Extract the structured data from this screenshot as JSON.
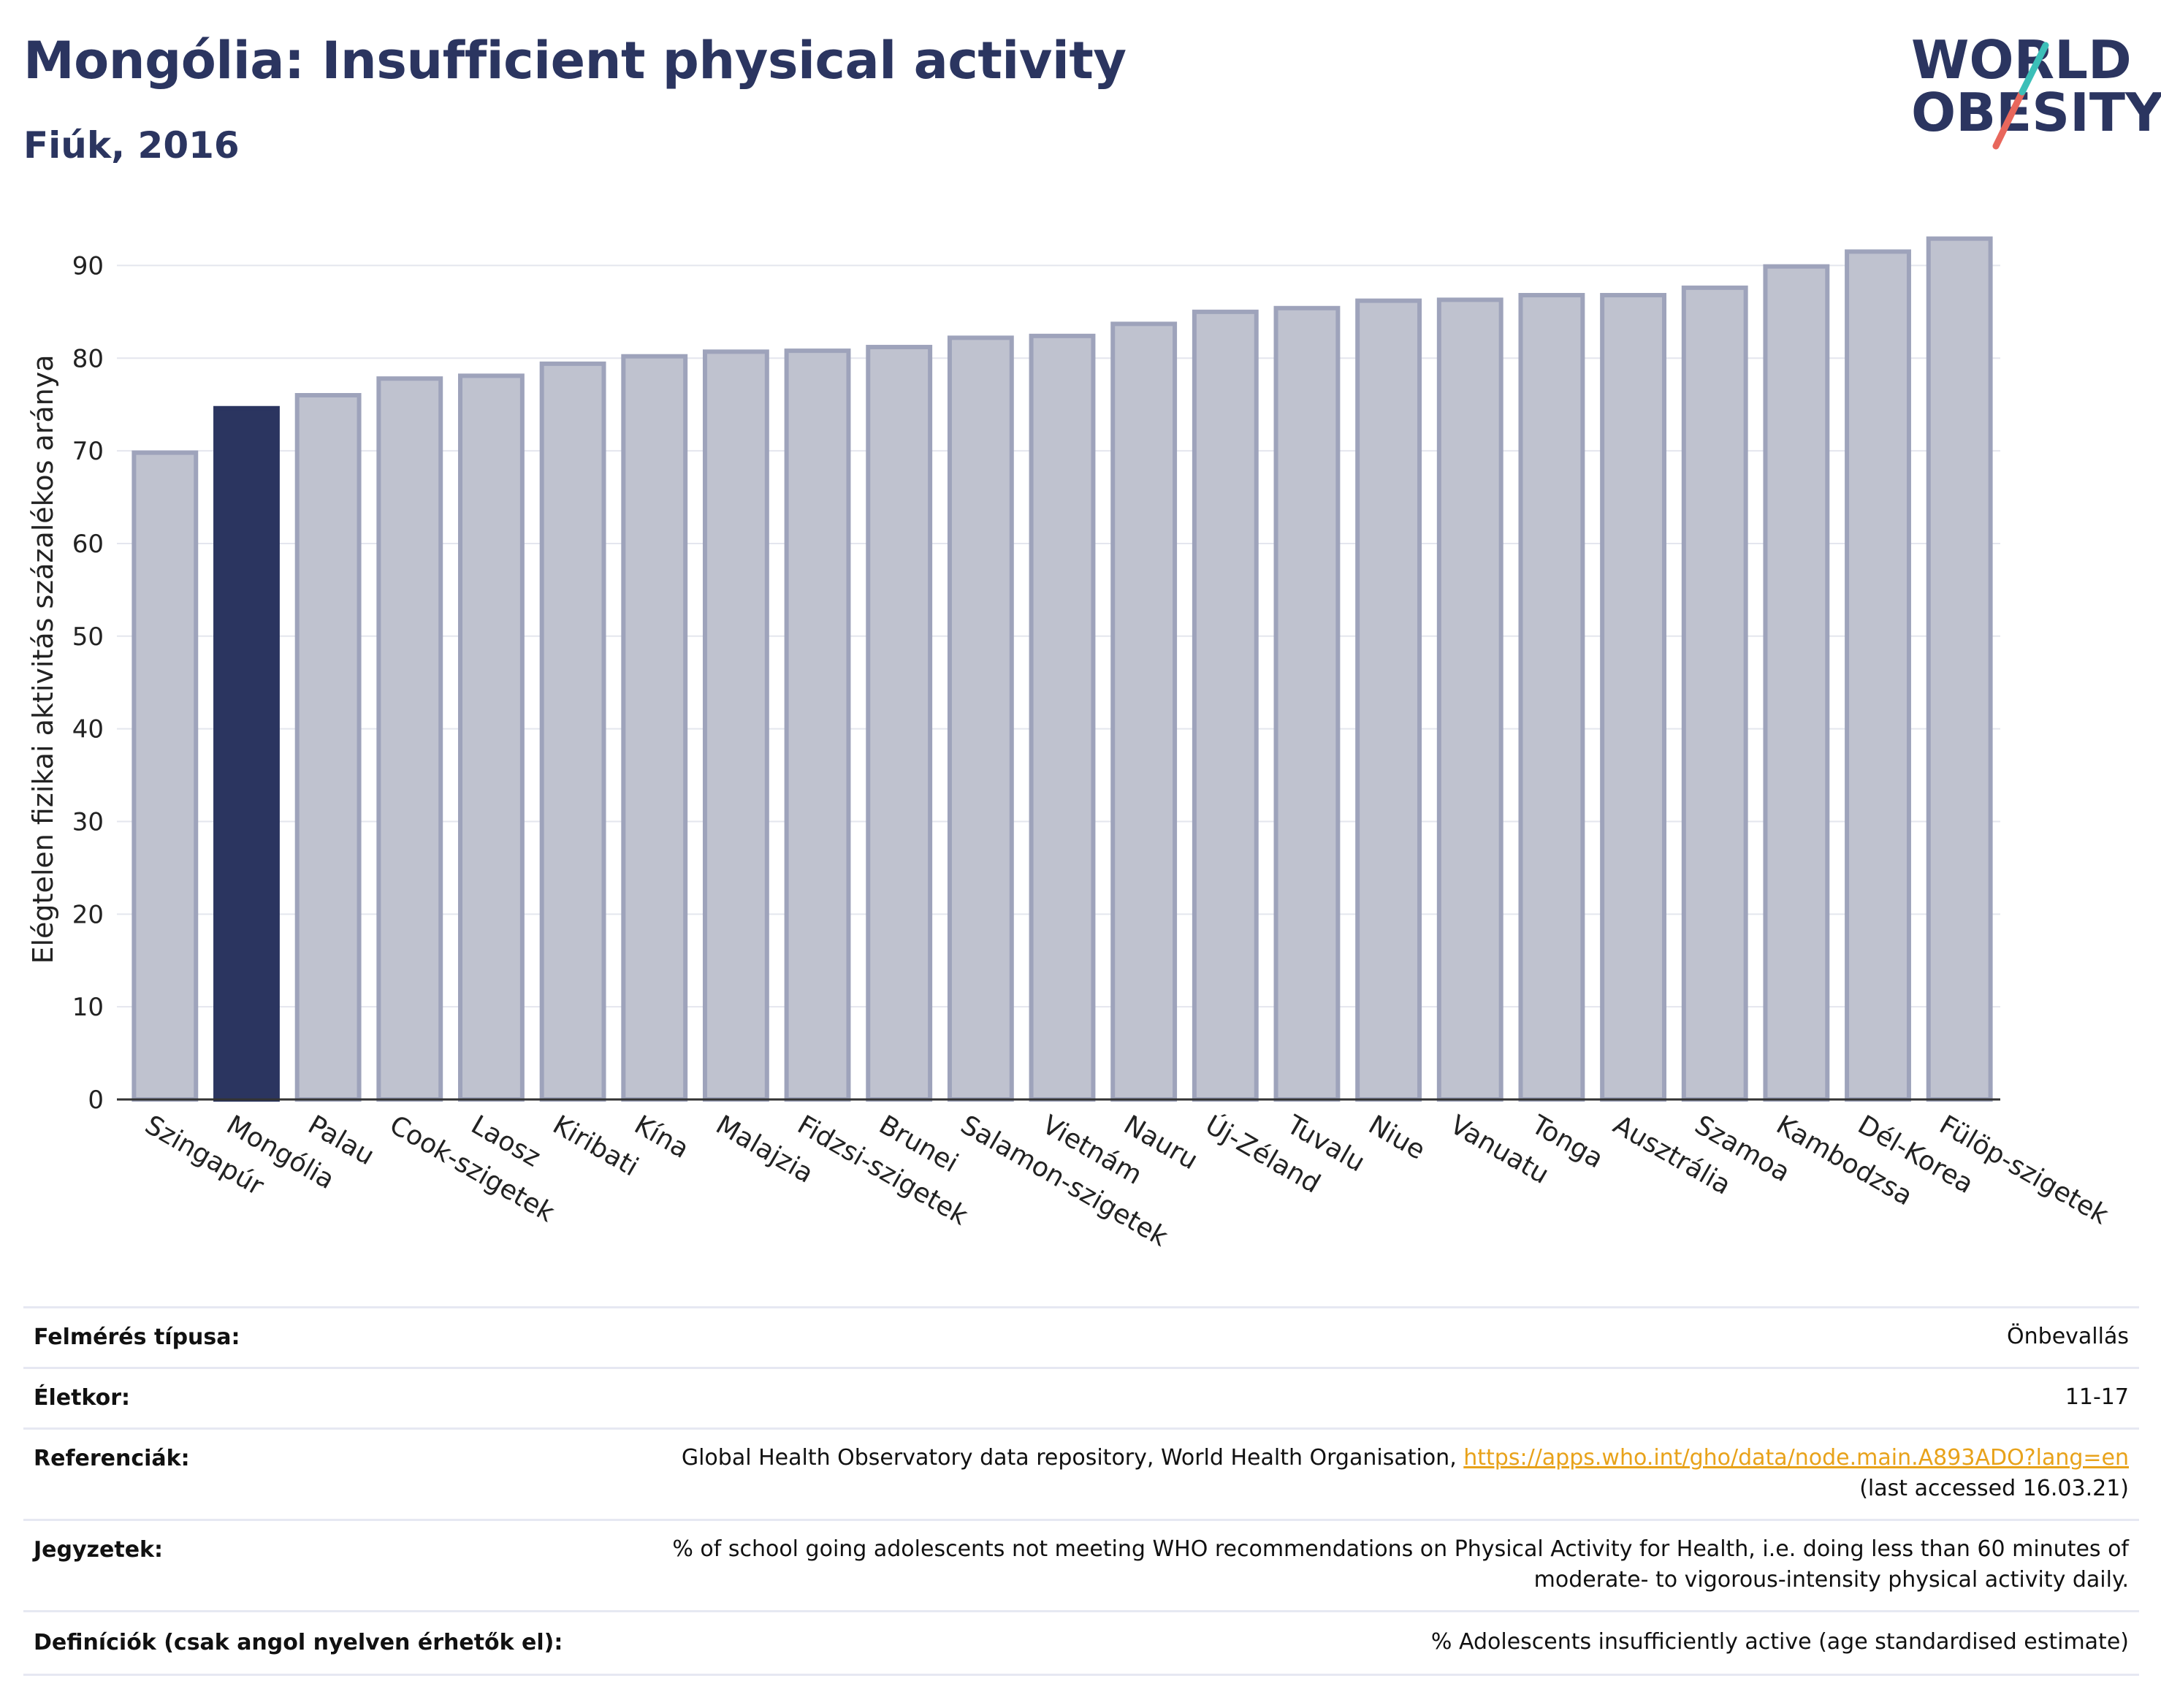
{
  "header": {
    "title": "Mongólia: Insufficient physical activity",
    "subtitle": "Fiúk, 2016"
  },
  "logo": {
    "line1": "WORLD",
    "line2": "OBESITY"
  },
  "colors": {
    "highlight": "#2b3560",
    "bar": "#bfc2cf",
    "bar_border": "#9ea3bb",
    "link": "#e8a21a"
  },
  "chart_data": {
    "type": "bar",
    "ylabel": "Elégtelen fizikai aktivitás százalékos aránya",
    "ylim": [
      0,
      95
    ],
    "yticks": [
      0,
      10,
      20,
      30,
      40,
      50,
      60,
      70,
      80,
      90
    ],
    "grid": true,
    "highlight": "Mongólia",
    "categories": [
      "Szingapúr",
      "Mongólia",
      "Palau",
      "Cook-szigetek",
      "Laosz",
      "Kiribati",
      "Kína",
      "Malajzia",
      "Fidzsi-szigetek",
      "Brunei",
      "Salamon-szigetek",
      "Vietnám",
      "Nauru",
      "Új-Zéland",
      "Tuvalu",
      "Niue",
      "Vanuatu",
      "Tonga",
      "Ausztrália",
      "Szamoa",
      "Kambodzsa",
      "Dél-Korea",
      "Fülöp-szigetek"
    ],
    "values": [
      69.8,
      74.6,
      76.0,
      77.8,
      78.1,
      79.4,
      80.2,
      80.7,
      80.8,
      81.2,
      82.2,
      82.4,
      83.7,
      85.0,
      85.4,
      86.2,
      86.3,
      86.8,
      86.8,
      87.6,
      89.9,
      91.5,
      92.9
    ]
  },
  "meta": {
    "survey_label": "Felmérés típusa:",
    "survey_value": "Önbevallás",
    "age_label": "Életkor:",
    "age_value": "11-17",
    "ref_label": "Referenciák:",
    "ref_text": "Global Health Observatory data repository, World Health Organisation, ",
    "ref_link": "https://apps.who.int/gho/data/node.main.A893ADO?lang=en",
    "ref_accessed": "(last accessed 16.03.21)",
    "notes_label": "Jegyzetek:",
    "notes_line1": "% of school going adolescents not meeting WHO recommendations on Physical Activity for Health, i.e. doing less than 60 minutes of",
    "notes_line2": "moderate- to vigorous-intensity physical activity daily.",
    "def_label": "Definíciók (csak angol nyelven érhetők el):",
    "def_value": "% Adolescents insufficiently active (age standardised estimate)"
  }
}
